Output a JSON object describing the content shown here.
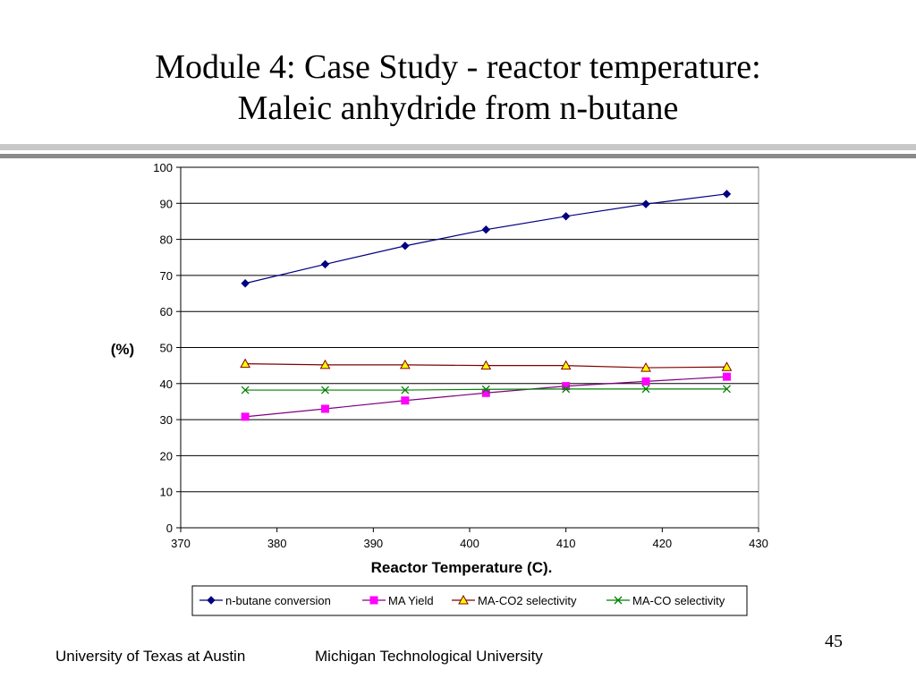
{
  "slide": {
    "title_line1": "Module 4: Case Study - reactor temperature:",
    "title_line2": "Maleic anhydride from n-butane",
    "footer_left": "University of Texas at Austin",
    "footer_right": "Michigan Technological University",
    "page_number": "45"
  },
  "colors": {
    "rule_light": "#c8c8c8",
    "rule_dark": "#8a8a8a"
  },
  "chart_data": {
    "type": "line",
    "title": "",
    "xlabel": "Reactor Temperature (C).",
    "ylabel": "(%)",
    "xlim": [
      370,
      430
    ],
    "ylim": [
      0,
      100
    ],
    "xticks": [
      "370",
      "380",
      "390",
      "400",
      "410",
      "420",
      "430"
    ],
    "yticks": [
      "0",
      "10",
      "20",
      "30",
      "40",
      "50",
      "60",
      "70",
      "80",
      "90",
      "100"
    ],
    "grid": "horizontal",
    "legend_position": "bottom",
    "x": [
      376.7,
      385,
      393.3,
      401.7,
      410,
      418.3,
      426.7
    ],
    "series": [
      {
        "name": "n-butane conversion",
        "marker": "diamond",
        "color": "#000080",
        "fill": "#000080",
        "values": [
          67.8,
          73.1,
          78.2,
          82.7,
          86.4,
          89.8,
          92.6
        ]
      },
      {
        "name": "MA Yield",
        "marker": "square",
        "color": "#800080",
        "fill": "#ff00ff",
        "values": [
          30.8,
          33.0,
          35.3,
          37.4,
          39.3,
          40.6,
          41.9
        ]
      },
      {
        "name": "MA-CO2 selectivity",
        "marker": "triangle",
        "color": "#800000",
        "fill": "#ffff00",
        "values": [
          45.5,
          45.2,
          45.2,
          45.0,
          45.0,
          44.4,
          44.6
        ]
      },
      {
        "name": "MA-CO selectivity",
        "marker": "x",
        "color": "#008000",
        "fill": "none",
        "values": [
          38.2,
          38.2,
          38.2,
          38.4,
          38.5,
          38.5,
          38.5
        ]
      }
    ]
  }
}
